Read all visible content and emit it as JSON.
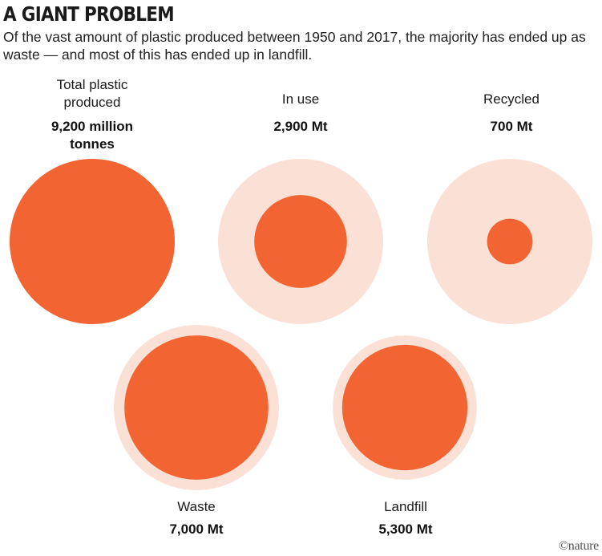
{
  "header": {
    "title": "A GIANT PROBLEM",
    "subtitle": "Of the vast amount of plastic produced between 1950 and 2017, the majority has ended up as waste — and most of this has ended up in landfill."
  },
  "credit": "©nature",
  "colors": {
    "outer": "#fbe0d6",
    "inner": "#f26532"
  },
  "chart_data": {
    "type": "proportional-circles",
    "unit": "Mt",
    "reference_total": 9200,
    "items": [
      {
        "label": "Total plastic produced",
        "value_text": "9,200 million tonnes",
        "value": 9200
      },
      {
        "label": "In use",
        "value_text": "2,900 Mt",
        "value": 2900
      },
      {
        "label": "Recycled",
        "value_text": "700 Mt",
        "value": 700
      },
      {
        "label": "Waste",
        "value_text": "7,000 Mt",
        "value": 7000
      },
      {
        "label": "Landfill",
        "value_text": "5,300 Mt",
        "value": 5300
      }
    ]
  }
}
